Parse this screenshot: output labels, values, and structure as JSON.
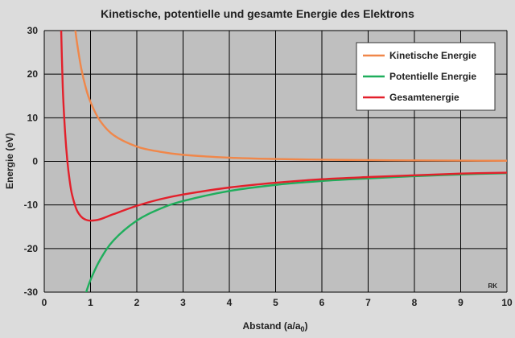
{
  "chart_data": {
    "type": "line",
    "title": "Kinetische, potentielle und gesamte Energie des Elektrons",
    "xlabel_main": "Abstand (a/a",
    "xlabel_sub": "0",
    "xlabel_close": ")",
    "ylabel": "Energie (eV)",
    "xlim": [
      0,
      10
    ],
    "ylim": [
      -30,
      30
    ],
    "xticks": [
      0,
      1,
      2,
      3,
      4,
      5,
      6,
      7,
      8,
      9,
      10
    ],
    "yticks": [
      -30,
      -20,
      -10,
      0,
      10,
      20,
      30
    ],
    "xtick_labels": [
      "0",
      "1",
      "2",
      "3",
      "4",
      "5",
      "6",
      "7",
      "8",
      "9",
      "10"
    ],
    "ytick_labels": [
      "-30",
      "-20",
      "-10",
      "0",
      "10",
      "20",
      "30"
    ],
    "grid": true,
    "legend_position": "top-right",
    "annotation": "RK",
    "series": [
      {
        "name": "Kinetische Energie",
        "color": "#f0874a",
        "x": [
          0.65,
          0.7,
          0.8,
          0.9,
          1,
          1.2,
          1.5,
          2,
          2.5,
          3,
          4,
          5,
          6,
          7,
          8,
          9,
          10
        ],
        "y": [
          32.2,
          27.8,
          21.3,
          16.8,
          13.6,
          9.4,
          6.0,
          3.4,
          2.2,
          1.5,
          0.85,
          0.54,
          0.38,
          0.28,
          0.21,
          0.17,
          0.14
        ]
      },
      {
        "name": "Potentielle Energie",
        "color": "#1fae5c",
        "x": [
          0.9,
          1,
          1.2,
          1.5,
          2,
          2.5,
          3,
          4,
          5,
          6,
          7,
          8,
          9,
          10
        ],
        "y": [
          -30.2,
          -27.2,
          -22.7,
          -18.1,
          -13.6,
          -10.9,
          -9.1,
          -6.8,
          -5.4,
          -4.5,
          -3.9,
          -3.4,
          -3.0,
          -2.7
        ]
      },
      {
        "name": "Gesamtenergie",
        "color": "#e3202b",
        "x": [
          0.36,
          0.4,
          0.45,
          0.5,
          0.55,
          0.6,
          0.7,
          0.8,
          0.9,
          1,
          1.2,
          1.5,
          2,
          2.5,
          3,
          4,
          5,
          6,
          7,
          8,
          9,
          10
        ],
        "y": [
          32.5,
          17.0,
          6.7,
          0.0,
          -4.5,
          -7.6,
          -11.1,
          -12.7,
          -13.4,
          -13.6,
          -13.3,
          -12.1,
          -10.2,
          -8.7,
          -7.6,
          -6.0,
          -4.9,
          -4.1,
          -3.6,
          -3.2,
          -2.8,
          -2.6
        ]
      }
    ]
  }
}
